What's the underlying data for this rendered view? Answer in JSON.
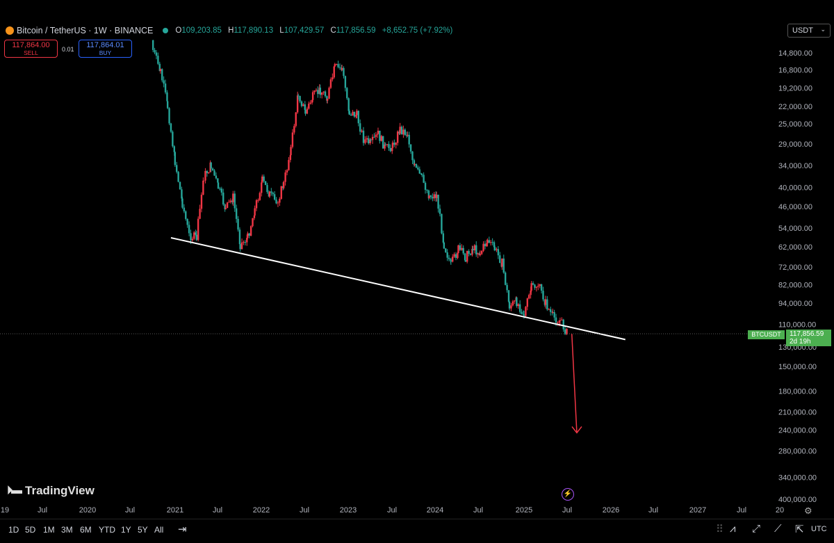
{
  "header": {
    "symbol": "Bitcoin / TetherUS · 1W · BINANCE",
    "open_label": "O",
    "open": "109,203.85",
    "high_label": "H",
    "high": "117,890.13",
    "low_label": "L",
    "low": "107,429.57",
    "close_label": "C",
    "close": "117,856.59",
    "change": "+8,652.75 (+7.92%)"
  },
  "trade": {
    "sell_price": "117,864.00",
    "sell_label": "SELL",
    "spread": "0.01",
    "buy_price": "117,864.01",
    "buy_label": "BUY"
  },
  "currency": "USDT",
  "current": {
    "symbol": "BTCUSDT",
    "price": "117,856.59",
    "countdown": "2d 19h"
  },
  "brand": "TradingView",
  "timeframes": [
    "1D",
    "5D",
    "1M",
    "3M",
    "6M",
    "YTD",
    "1Y",
    "5Y",
    "All"
  ],
  "tools": {
    "utc": "UTC"
  },
  "colors": {
    "up": "#26a69a",
    "down": "#f23645",
    "trendline": "#ffffff",
    "arrow": "#f23645",
    "current": "#4caf50"
  },
  "chart_data": {
    "type": "candlestick",
    "y_axis_inverted": true,
    "y_scale": "log",
    "y_ticks": [
      "14,800.00",
      "16,800.00",
      "19,200.00",
      "22,000.00",
      "25,000.00",
      "29,000.00",
      "34,000.00",
      "40,000.00",
      "46,000.00",
      "54,000.00",
      "62,000.00",
      "72,000.00",
      "82,000.00",
      "94,000.00",
      "110,000.00",
      "130,000.00",
      "150,000.00",
      "180,000.00",
      "210,000.00",
      "240,000.00",
      "280,000.00",
      "340,000.00",
      "400,000.00"
    ],
    "x_ticks": [
      "19",
      "Jul",
      "2020",
      "Jul",
      "2021",
      "Jul",
      "2022",
      "Jul",
      "2023",
      "Jul",
      "2024",
      "Jul",
      "2025",
      "Jul",
      "2026",
      "Jul",
      "2027",
      "Jul",
      "20"
    ],
    "close_path": [
      {
        "date": "2020-10-01",
        "close": 14500
      },
      {
        "date": "2020-11-01",
        "close": 17000
      },
      {
        "date": "2020-12-01",
        "close": 22000
      },
      {
        "date": "2021-01-01",
        "close": 33000
      },
      {
        "date": "2021-02-01",
        "close": 45000
      },
      {
        "date": "2021-03-01",
        "close": 57000
      },
      {
        "date": "2021-04-01",
        "close": 58000
      },
      {
        "date": "2021-05-01",
        "close": 37000
      },
      {
        "date": "2021-06-01",
        "close": 34000
      },
      {
        "date": "2021-07-01",
        "close": 40000
      },
      {
        "date": "2021-08-01",
        "close": 47000
      },
      {
        "date": "2021-09-01",
        "close": 43000
      },
      {
        "date": "2021-10-01",
        "close": 61000
      },
      {
        "date": "2021-11-01",
        "close": 58000
      },
      {
        "date": "2021-12-01",
        "close": 47000
      },
      {
        "date": "2022-01-01",
        "close": 38000
      },
      {
        "date": "2022-02-01",
        "close": 42000
      },
      {
        "date": "2022-03-01",
        "close": 45000
      },
      {
        "date": "2022-04-01",
        "close": 39000
      },
      {
        "date": "2022-05-01",
        "close": 30000
      },
      {
        "date": "2022-06-01",
        "close": 20000
      },
      {
        "date": "2022-07-01",
        "close": 23000
      },
      {
        "date": "2022-08-01",
        "close": 20500
      },
      {
        "date": "2022-09-01",
        "close": 19500
      },
      {
        "date": "2022-10-01",
        "close": 20500
      },
      {
        "date": "2022-11-01",
        "close": 16500
      },
      {
        "date": "2022-12-01",
        "close": 16600
      },
      {
        "date": "2023-01-01",
        "close": 23000
      },
      {
        "date": "2023-02-01",
        "close": 23500
      },
      {
        "date": "2023-03-01",
        "close": 28000
      },
      {
        "date": "2023-04-01",
        "close": 29000
      },
      {
        "date": "2023-05-01",
        "close": 27000
      },
      {
        "date": "2023-06-01",
        "close": 30000
      },
      {
        "date": "2023-07-01",
        "close": 29500
      },
      {
        "date": "2023-08-01",
        "close": 26000
      },
      {
        "date": "2023-09-01",
        "close": 27000
      },
      {
        "date": "2023-10-01",
        "close": 34500
      },
      {
        "date": "2023-11-01",
        "close": 37500
      },
      {
        "date": "2023-12-01",
        "close": 42500
      },
      {
        "date": "2024-01-01",
        "close": 42500
      },
      {
        "date": "2024-02-01",
        "close": 61000
      },
      {
        "date": "2024-03-01",
        "close": 71000
      },
      {
        "date": "2024-04-01",
        "close": 63000
      },
      {
        "date": "2024-05-01",
        "close": 67000
      },
      {
        "date": "2024-06-01",
        "close": 62500
      },
      {
        "date": "2024-07-01",
        "close": 65000
      },
      {
        "date": "2024-08-01",
        "close": 59000
      },
      {
        "date": "2024-09-01",
        "close": 63000
      },
      {
        "date": "2024-10-01",
        "close": 70000
      },
      {
        "date": "2024-11-01",
        "close": 96000
      },
      {
        "date": "2024-12-01",
        "close": 93000
      },
      {
        "date": "2025-01-01",
        "close": 102000
      },
      {
        "date": "2025-02-01",
        "close": 84000
      },
      {
        "date": "2025-03-01",
        "close": 82000
      },
      {
        "date": "2025-04-01",
        "close": 94000
      },
      {
        "date": "2025-05-01",
        "close": 104000
      },
      {
        "date": "2025-06-01",
        "close": 107000
      },
      {
        "date": "2025-07-01",
        "close": 117856.59
      }
    ],
    "trendline": {
      "from": {
        "date": "2020-12-15",
        "price": 58000
      },
      "to": {
        "date": "2026-03-01",
        "price": 123000
      }
    },
    "arrow": {
      "from": {
        "date": "2025-07-20",
        "price": 118000
      },
      "to": {
        "date": "2025-08-10",
        "price": 245000
      }
    }
  }
}
